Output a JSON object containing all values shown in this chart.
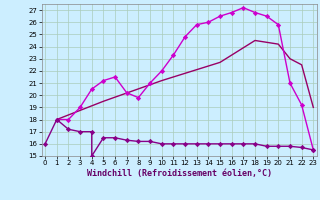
{
  "xlabel": "Windchill (Refroidissement éolien,°C)",
  "bg_color": "#cceeff",
  "line1": {
    "x": [
      1,
      2,
      3,
      4,
      5,
      6,
      7,
      8,
      9,
      10,
      11,
      12,
      13,
      14,
      15,
      16,
      17,
      18,
      19,
      20,
      21,
      22,
      23
    ],
    "y": [
      18.0,
      18.0,
      19.0,
      20.5,
      21.2,
      21.5,
      20.2,
      19.8,
      21.0,
      22.0,
      23.3,
      24.8,
      25.8,
      26.0,
      26.5,
      26.8,
      27.2,
      26.8,
      26.5,
      25.8,
      21.0,
      19.2,
      15.5
    ],
    "color": "#cc00cc",
    "marker": "D",
    "markersize": 2.2,
    "linewidth": 1.0
  },
  "line2": {
    "x": [
      1,
      5,
      10,
      15,
      18,
      20,
      21,
      22,
      23
    ],
    "y": [
      18.0,
      19.5,
      21.2,
      22.7,
      24.5,
      24.2,
      23.0,
      22.5,
      19.0
    ],
    "color": "#990066",
    "marker": null,
    "linewidth": 1.0
  },
  "line3": {
    "x": [
      0,
      1,
      2,
      3,
      4,
      4,
      5,
      6,
      7,
      8,
      9,
      10,
      11,
      12,
      13,
      14,
      15,
      16,
      17,
      18,
      19,
      20,
      21,
      22,
      23
    ],
    "y": [
      16.0,
      18.0,
      17.2,
      17.0,
      17.0,
      15.0,
      16.5,
      16.5,
      16.3,
      16.2,
      16.2,
      16.0,
      16.0,
      16.0,
      16.0,
      16.0,
      16.0,
      16.0,
      16.0,
      16.0,
      15.8,
      15.8,
      15.8,
      15.7,
      15.5
    ],
    "color": "#880088",
    "marker": "D",
    "markersize": 2.2,
    "linewidth": 1.0
  },
  "xlim": [
    -0.3,
    23.3
  ],
  "ylim": [
    15,
    27.5
  ],
  "xticks": [
    0,
    1,
    2,
    3,
    4,
    5,
    6,
    7,
    8,
    9,
    10,
    11,
    12,
    13,
    14,
    15,
    16,
    17,
    18,
    19,
    20,
    21,
    22,
    23
  ],
  "yticks": [
    15,
    16,
    17,
    18,
    19,
    20,
    21,
    22,
    23,
    24,
    25,
    26,
    27
  ],
  "grid_color": "#aaccbb",
  "tick_fontsize": 5.0,
  "xlabel_fontsize": 6.0
}
